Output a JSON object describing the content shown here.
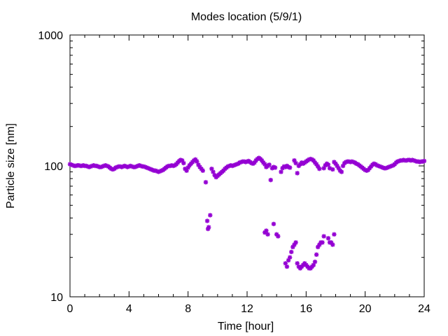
{
  "chart_data": {
    "type": "scatter",
    "title": "Modes location (5/9/1)",
    "xlabel": "Time [hour]",
    "ylabel": "Particle size [nm]",
    "xlim": [
      0,
      24
    ],
    "ylim": [
      10,
      1000
    ],
    "yscale": "log",
    "grid": false,
    "legend": "none",
    "marker": "asterisk",
    "color": "#9400D3",
    "xticks": [
      0,
      4,
      8,
      12,
      16,
      20,
      24
    ],
    "xtick_labels": [
      "0",
      "4",
      "8",
      "12",
      "16",
      "20",
      "24"
    ],
    "yticks": [
      10,
      100,
      1000
    ],
    "ytick_labels": [
      "10",
      "100",
      "1000"
    ],
    "series": [
      {
        "values_description_omitted": "",
        "points": [
          [
            0.0,
            103
          ],
          [
            0.1,
            102
          ],
          [
            0.2,
            101
          ],
          [
            0.3,
            100
          ],
          [
            0.4,
            100
          ],
          [
            0.5,
            101
          ],
          [
            0.6,
            101
          ],
          [
            0.7,
            100
          ],
          [
            0.8,
            100
          ],
          [
            0.9,
            101
          ],
          [
            1.0,
            100
          ],
          [
            1.1,
            100
          ],
          [
            1.2,
            99
          ],
          [
            1.3,
            98
          ],
          [
            1.4,
            99
          ],
          [
            1.5,
            100
          ],
          [
            1.6,
            101
          ],
          [
            1.7,
            100
          ],
          [
            1.8,
            100
          ],
          [
            1.9,
            99
          ],
          [
            2.0,
            98
          ],
          [
            2.1,
            98
          ],
          [
            2.2,
            99
          ],
          [
            2.3,
            100
          ],
          [
            2.4,
            101
          ],
          [
            2.5,
            100
          ],
          [
            2.6,
            99
          ],
          [
            2.7,
            97
          ],
          [
            2.8,
            95
          ],
          [
            2.9,
            94
          ],
          [
            3.0,
            95
          ],
          [
            3.1,
            97
          ],
          [
            3.2,
            98
          ],
          [
            3.3,
            99
          ],
          [
            3.4,
            99
          ],
          [
            3.5,
            98
          ],
          [
            3.6,
            99
          ],
          [
            3.7,
            100
          ],
          [
            3.8,
            99
          ],
          [
            3.9,
            98
          ],
          [
            4.0,
            99
          ],
          [
            4.1,
            100
          ],
          [
            4.2,
            99
          ],
          [
            4.3,
            98
          ],
          [
            4.4,
            98
          ],
          [
            4.5,
            99
          ],
          [
            4.6,
            100
          ],
          [
            4.7,
            101
          ],
          [
            4.8,
            100
          ],
          [
            4.9,
            99
          ],
          [
            5.0,
            99
          ],
          [
            5.1,
            98
          ],
          [
            5.2,
            97
          ],
          [
            5.3,
            96
          ],
          [
            5.4,
            95
          ],
          [
            5.5,
            94
          ],
          [
            5.6,
            93
          ],
          [
            5.7,
            92
          ],
          [
            5.8,
            92
          ],
          [
            5.9,
            91
          ],
          [
            6.0,
            90
          ],
          [
            6.1,
            91
          ],
          [
            6.2,
            92
          ],
          [
            6.3,
            93
          ],
          [
            6.4,
            95
          ],
          [
            6.5,
            97
          ],
          [
            6.6,
            99
          ],
          [
            6.7,
            100
          ],
          [
            6.8,
            100
          ],
          [
            6.9,
            101
          ],
          [
            7.0,
            100
          ],
          [
            7.1,
            101
          ],
          [
            7.2,
            103
          ],
          [
            7.3,
            106
          ],
          [
            7.4,
            109
          ],
          [
            7.5,
            111
          ],
          [
            7.6,
            110
          ],
          [
            7.7,
            105
          ],
          [
            7.8,
            95
          ],
          [
            7.9,
            92
          ],
          [
            8.0,
            97
          ],
          [
            8.1,
            101
          ],
          [
            8.2,
            104
          ],
          [
            8.3,
            107
          ],
          [
            8.4,
            110
          ],
          [
            8.5,
            112
          ],
          [
            8.6,
            108
          ],
          [
            8.7,
            102
          ],
          [
            8.8,
            98
          ],
          [
            8.9,
            95
          ],
          [
            9.0,
            92
          ],
          [
            9.2,
            75
          ],
          [
            9.3,
            38
          ],
          [
            9.35,
            33
          ],
          [
            9.4,
            34
          ],
          [
            9.5,
            42
          ],
          [
            9.6,
            95
          ],
          [
            9.7,
            90
          ],
          [
            9.8,
            85
          ],
          [
            9.9,
            82
          ],
          [
            10.0,
            84
          ],
          [
            10.1,
            86
          ],
          [
            10.2,
            88
          ],
          [
            10.3,
            90
          ],
          [
            10.4,
            92
          ],
          [
            10.5,
            95
          ],
          [
            10.6,
            97
          ],
          [
            10.7,
            99
          ],
          [
            10.8,
            100
          ],
          [
            10.9,
            101
          ],
          [
            11.0,
            100
          ],
          [
            11.1,
            101
          ],
          [
            11.2,
            102
          ],
          [
            11.3,
            103
          ],
          [
            11.4,
            104
          ],
          [
            11.5,
            106
          ],
          [
            11.6,
            107
          ],
          [
            11.7,
            108
          ],
          [
            11.8,
            108
          ],
          [
            11.9,
            107
          ],
          [
            12.0,
            108
          ],
          [
            12.1,
            109
          ],
          [
            12.2,
            107
          ],
          [
            12.3,
            105
          ],
          [
            12.4,
            104
          ],
          [
            12.5,
            106
          ],
          [
            12.6,
            110
          ],
          [
            12.7,
            113
          ],
          [
            12.8,
            115
          ],
          [
            12.9,
            113
          ],
          [
            13.0,
            110
          ],
          [
            13.1,
            106
          ],
          [
            13.2,
            103
          ],
          [
            13.3,
            98
          ],
          [
            13.4,
            100
          ],
          [
            13.5,
            102
          ],
          [
            13.6,
            78
          ],
          [
            13.7,
            96
          ],
          [
            13.8,
            98
          ],
          [
            13.9,
            97
          ],
          [
            13.2,
            31
          ],
          [
            13.3,
            32
          ],
          [
            13.4,
            30
          ],
          [
            13.8,
            36
          ],
          [
            14.0,
            30
          ],
          [
            14.1,
            29
          ],
          [
            14.3,
            90
          ],
          [
            14.4,
            96
          ],
          [
            14.5,
            99
          ],
          [
            14.6,
            98
          ],
          [
            14.7,
            100
          ],
          [
            14.8,
            98
          ],
          [
            14.9,
            97
          ],
          [
            14.6,
            18
          ],
          [
            14.7,
            17
          ],
          [
            14.8,
            19
          ],
          [
            14.9,
            20
          ],
          [
            15.0,
            22
          ],
          [
            15.1,
            24
          ],
          [
            15.2,
            25
          ],
          [
            15.3,
            26
          ],
          [
            15.2,
            110
          ],
          [
            15.3,
            105
          ],
          [
            15.4,
            88
          ],
          [
            15.5,
            100
          ],
          [
            15.6,
            103
          ],
          [
            15.7,
            106
          ],
          [
            15.8,
            104
          ],
          [
            15.9,
            106
          ],
          [
            15.4,
            18
          ],
          [
            15.5,
            17
          ],
          [
            15.6,
            16.5
          ],
          [
            15.7,
            17
          ],
          [
            15.8,
            17.5
          ],
          [
            15.9,
            18
          ],
          [
            16.0,
            17.5
          ],
          [
            16.1,
            17
          ],
          [
            16.2,
            16.5
          ],
          [
            16.3,
            16.5
          ],
          [
            16.4,
            17
          ],
          [
            16.5,
            17.5
          ],
          [
            16.6,
            18.5
          ],
          [
            16.7,
            21
          ],
          [
            16.8,
            24
          ],
          [
            16.9,
            25
          ],
          [
            17.0,
            26
          ],
          [
            17.1,
            26
          ],
          [
            16.0,
            108
          ],
          [
            16.1,
            110
          ],
          [
            16.2,
            112
          ],
          [
            16.3,
            113
          ],
          [
            16.4,
            112
          ],
          [
            16.5,
            110
          ],
          [
            16.6,
            106
          ],
          [
            16.7,
            103
          ],
          [
            16.8,
            99
          ],
          [
            16.9,
            95
          ],
          [
            17.2,
            29
          ],
          [
            17.5,
            28
          ],
          [
            17.6,
            26
          ],
          [
            17.7,
            26
          ],
          [
            17.8,
            25
          ],
          [
            17.9,
            30
          ],
          [
            17.2,
            96
          ],
          [
            17.3,
            101
          ],
          [
            17.4,
            104
          ],
          [
            17.5,
            102
          ],
          [
            17.6,
            96
          ],
          [
            17.8,
            94
          ],
          [
            17.9,
            107
          ],
          [
            18.0,
            104
          ],
          [
            18.1,
            100
          ],
          [
            18.2,
            96
          ],
          [
            18.3,
            92
          ],
          [
            18.4,
            90
          ],
          [
            18.5,
            100
          ],
          [
            18.6,
            105
          ],
          [
            18.7,
            107
          ],
          [
            18.8,
            108
          ],
          [
            18.9,
            108
          ],
          [
            19.0,
            107
          ],
          [
            19.1,
            108
          ],
          [
            19.2,
            107
          ],
          [
            19.3,
            106
          ],
          [
            19.4,
            104
          ],
          [
            19.5,
            103
          ],
          [
            19.6,
            101
          ],
          [
            19.7,
            99
          ],
          [
            19.8,
            97
          ],
          [
            19.9,
            95
          ],
          [
            20.0,
            93
          ],
          [
            20.1,
            92
          ],
          [
            20.2,
            93
          ],
          [
            20.3,
            96
          ],
          [
            20.4,
            99
          ],
          [
            20.5,
            102
          ],
          [
            20.6,
            104
          ],
          [
            20.7,
            103
          ],
          [
            20.8,
            101
          ],
          [
            20.9,
            100
          ],
          [
            21.0,
            99
          ],
          [
            21.1,
            98
          ],
          [
            21.2,
            97
          ],
          [
            21.3,
            96
          ],
          [
            21.4,
            96
          ],
          [
            21.5,
            97
          ],
          [
            21.6,
            98
          ],
          [
            21.7,
            99
          ],
          [
            21.8,
            100
          ],
          [
            21.9,
            101
          ],
          [
            22.0,
            103
          ],
          [
            22.1,
            106
          ],
          [
            22.2,
            108
          ],
          [
            22.3,
            109
          ],
          [
            22.4,
            110
          ],
          [
            22.5,
            110
          ],
          [
            22.6,
            111
          ],
          [
            22.7,
            110
          ],
          [
            22.8,
            110
          ],
          [
            22.9,
            111
          ],
          [
            23.0,
            111
          ],
          [
            23.1,
            110
          ],
          [
            23.2,
            111
          ],
          [
            23.3,
            110
          ],
          [
            23.4,
            109
          ],
          [
            23.5,
            108
          ],
          [
            23.6,
            108
          ],
          [
            23.7,
            107
          ],
          [
            23.8,
            108
          ],
          [
            23.9,
            108
          ],
          [
            24.0,
            109
          ]
        ]
      }
    ]
  }
}
